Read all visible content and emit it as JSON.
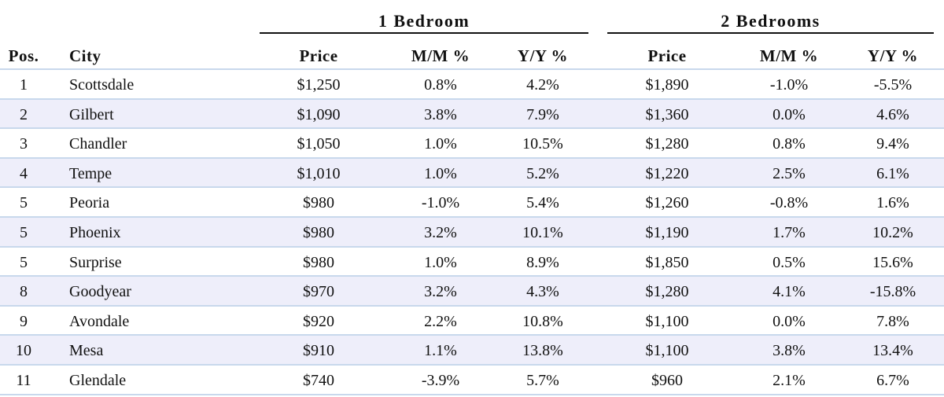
{
  "groups": [
    "1 Bedroom",
    "2 Bedrooms"
  ],
  "columns": [
    "Pos.",
    "City",
    "Price",
    "M/M %",
    "Y/Y %",
    "Price",
    "M/M %",
    "Y/Y %"
  ],
  "rows": [
    [
      "1",
      "Scottsdale",
      "$1,250",
      "0.8%",
      "4.2%",
      "$1,890",
      "-1.0%",
      "-5.5%"
    ],
    [
      "2",
      "Gilbert",
      "$1,090",
      "3.8%",
      "7.9%",
      "$1,360",
      "0.0%",
      "4.6%"
    ],
    [
      "3",
      "Chandler",
      "$1,050",
      "1.0%",
      "10.5%",
      "$1,280",
      "0.8%",
      "9.4%"
    ],
    [
      "4",
      "Tempe",
      "$1,010",
      "1.0%",
      "5.2%",
      "$1,220",
      "2.5%",
      "6.1%"
    ],
    [
      "5",
      "Peoria",
      "$980",
      "-1.0%",
      "5.4%",
      "$1,260",
      "-0.8%",
      "1.6%"
    ],
    [
      "5",
      "Phoenix",
      "$980",
      "3.2%",
      "10.1%",
      "$1,190",
      "1.7%",
      "10.2%"
    ],
    [
      "5",
      "Surprise",
      "$980",
      "1.0%",
      "8.9%",
      "$1,850",
      "0.5%",
      "15.6%"
    ],
    [
      "8",
      "Goodyear",
      "$970",
      "3.2%",
      "4.3%",
      "$1,280",
      "4.1%",
      "-15.8%"
    ],
    [
      "9",
      "Avondale",
      "$920",
      "2.2%",
      "10.8%",
      "$1,100",
      "0.0%",
      "7.8%"
    ],
    [
      "10",
      "Mesa",
      "$910",
      "1.1%",
      "13.8%",
      "$1,100",
      "3.8%",
      "13.4%"
    ],
    [
      "11",
      "Glendale",
      "$740",
      "-3.9%",
      "5.7%",
      "$960",
      "2.1%",
      "6.7%"
    ]
  ]
}
